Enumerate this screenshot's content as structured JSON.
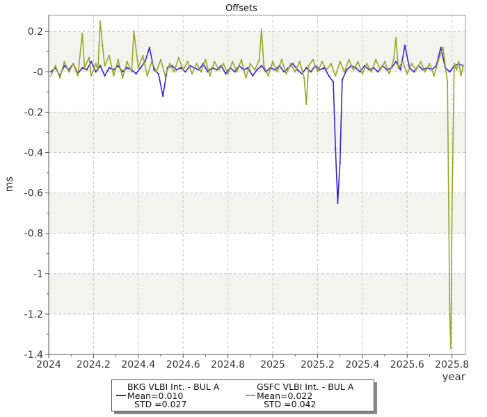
{
  "chart_data": {
    "type": "line",
    "title": "Offsets",
    "xlabel": "year",
    "ylabel": "ms",
    "xlim": [
      2024.0,
      2025.86
    ],
    "ylim": [
      -1.4,
      0.28
    ],
    "xticks": [
      2024,
      2024.2,
      2024.4,
      2024.6,
      2024.8,
      2025,
      2025.2,
      2025.4,
      2025.6,
      2025.8
    ],
    "xtick_labels": [
      "2024",
      "2024.2",
      "2024.4",
      "2024.6",
      "2024.8",
      "2025",
      "2025.2",
      "2025.4",
      "2025.6",
      "2025.8"
    ],
    "yticks": [
      0.2,
      0,
      -0.2,
      -0.4,
      -0.6,
      -0.8,
      -1,
      -1.2,
      -1.4
    ],
    "ytick_labels": [
      "0.2",
      "-0",
      "-0.2",
      "-0.4",
      "-0.6",
      "-0.8",
      "-1",
      "-1.2",
      "-1.4"
    ],
    "grid": true,
    "legend_position": "bottom-center",
    "series": [
      {
        "name": "BKG VLBI Int. - BUL A",
        "mean_label": "Mean=0.010",
        "std_label": "STD =0.027",
        "color": "#3a20d8",
        "points": [
          [
            2024.01,
            0.0
          ],
          [
            2024.03,
            0.02
          ],
          [
            2024.05,
            -0.02
          ],
          [
            2024.07,
            0.03
          ],
          [
            2024.09,
            0.01
          ],
          [
            2024.11,
            0.04
          ],
          [
            2024.13,
            -0.01
          ],
          [
            2024.15,
            0.02
          ],
          [
            2024.17,
            0.01
          ],
          [
            2024.19,
            0.05
          ],
          [
            2024.21,
            0.0
          ],
          [
            2024.23,
            0.03
          ],
          [
            2024.25,
            -0.02
          ],
          [
            2024.27,
            0.02
          ],
          [
            2024.29,
            0.01
          ],
          [
            2024.31,
            0.03
          ],
          [
            2024.33,
            0.0
          ],
          [
            2024.35,
            0.02
          ],
          [
            2024.37,
            0.01
          ],
          [
            2024.39,
            -0.01
          ],
          [
            2024.41,
            0.02
          ],
          [
            2024.43,
            0.05
          ],
          [
            2024.45,
            0.12
          ],
          [
            2024.47,
            0.01
          ],
          [
            2024.49,
            -0.01
          ],
          [
            2024.51,
            -0.12
          ],
          [
            2024.53,
            0.02
          ],
          [
            2024.55,
            0.03
          ],
          [
            2024.57,
            0.01
          ],
          [
            2024.59,
            0.02
          ],
          [
            2024.61,
            0.0
          ],
          [
            2024.63,
            0.03
          ],
          [
            2024.65,
            0.02
          ],
          [
            2024.67,
            0.01
          ],
          [
            2024.69,
            0.04
          ],
          [
            2024.71,
            0.0
          ],
          [
            2024.73,
            0.02
          ],
          [
            2024.75,
            0.01
          ],
          [
            2024.77,
            0.03
          ],
          [
            2024.79,
            -0.01
          ],
          [
            2024.81,
            0.02
          ],
          [
            2024.83,
            0.0
          ],
          [
            2024.85,
            0.03
          ],
          [
            2024.87,
            0.01
          ],
          [
            2024.89,
            0.02
          ],
          [
            2024.91,
            -0.02
          ],
          [
            2024.93,
            0.01
          ],
          [
            2024.95,
            0.03
          ],
          [
            2024.97,
            0.0
          ],
          [
            2024.99,
            0.02
          ],
          [
            2025.01,
            0.01
          ],
          [
            2025.03,
            0.03
          ],
          [
            2025.05,
            0.0
          ],
          [
            2025.07,
            0.02
          ],
          [
            2025.09,
            0.04
          ],
          [
            2025.11,
            0.01
          ],
          [
            2025.13,
            -0.01
          ],
          [
            2025.15,
            0.02
          ],
          [
            2025.17,
            0.0
          ],
          [
            2025.19,
            0.03
          ],
          [
            2025.21,
            0.01
          ],
          [
            2025.23,
            0.02
          ],
          [
            2025.25,
            -0.02
          ],
          [
            2025.27,
            -0.05
          ],
          [
            2025.28,
            -0.38
          ],
          [
            2025.29,
            -0.65
          ],
          [
            2025.3,
            -0.45
          ],
          [
            2025.31,
            -0.04
          ],
          [
            2025.33,
            0.01
          ],
          [
            2025.35,
            0.03
          ],
          [
            2025.37,
            0.02
          ],
          [
            2025.39,
            0.0
          ],
          [
            2025.41,
            0.03
          ],
          [
            2025.43,
            0.01
          ],
          [
            2025.45,
            0.02
          ],
          [
            2025.47,
            0.0
          ],
          [
            2025.49,
            0.03
          ],
          [
            2025.51,
            0.01
          ],
          [
            2025.53,
            0.02
          ],
          [
            2025.55,
            0.05
          ],
          [
            2025.57,
            0.01
          ],
          [
            2025.59,
            0.13
          ],
          [
            2025.61,
            0.02
          ],
          [
            2025.63,
            0.0
          ],
          [
            2025.65,
            0.03
          ],
          [
            2025.67,
            0.01
          ],
          [
            2025.69,
            0.02
          ],
          [
            2025.71,
            0.01
          ],
          [
            2025.73,
            0.03
          ],
          [
            2025.75,
            0.12
          ],
          [
            2025.77,
            0.02
          ],
          [
            2025.79,
            0.0
          ],
          [
            2025.81,
            0.03
          ],
          [
            2025.83,
            0.04
          ],
          [
            2025.85,
            0.03
          ]
        ]
      },
      {
        "name": "GSFC VLBI Int. - BUL A",
        "mean_label": "Mean=0.022",
        "std_label": "STD =0.042",
        "color": "#9aa526",
        "points": [
          [
            2024.01,
            -0.02
          ],
          [
            2024.03,
            0.03
          ],
          [
            2024.05,
            -0.03
          ],
          [
            2024.07,
            0.05
          ],
          [
            2024.09,
            0.0
          ],
          [
            2024.11,
            0.04
          ],
          [
            2024.13,
            -0.02
          ],
          [
            2024.15,
            0.19
          ],
          [
            2024.16,
            0.02
          ],
          [
            2024.18,
            0.07
          ],
          [
            2024.19,
            -0.02
          ],
          [
            2024.21,
            0.04
          ],
          [
            2024.22,
            0.01
          ],
          [
            2024.23,
            0.25
          ],
          [
            2024.24,
            0.13
          ],
          [
            2024.25,
            0.03
          ],
          [
            2024.27,
            0.08
          ],
          [
            2024.29,
            -0.02
          ],
          [
            2024.31,
            0.06
          ],
          [
            2024.33,
            -0.03
          ],
          [
            2024.35,
            0.05
          ],
          [
            2024.37,
            0.0
          ],
          [
            2024.38,
            0.2
          ],
          [
            2024.4,
            0.02
          ],
          [
            2024.42,
            0.08
          ],
          [
            2024.44,
            -0.02
          ],
          [
            2024.46,
            0.05
          ],
          [
            2024.48,
            0.0
          ],
          [
            2024.5,
            0.06
          ],
          [
            2024.52,
            -0.02
          ],
          [
            2024.54,
            0.04
          ],
          [
            2024.56,
            0.0
          ],
          [
            2024.58,
            0.07
          ],
          [
            2024.6,
            0.01
          ],
          [
            2024.62,
            0.05
          ],
          [
            2024.64,
            -0.01
          ],
          [
            2024.66,
            0.04
          ],
          [
            2024.68,
            0.0
          ],
          [
            2024.7,
            0.06
          ],
          [
            2024.72,
            -0.02
          ],
          [
            2024.74,
            0.05
          ],
          [
            2024.76,
            0.01
          ],
          [
            2024.78,
            0.04
          ],
          [
            2024.8,
            -0.01
          ],
          [
            2024.82,
            0.05
          ],
          [
            2024.84,
            0.0
          ],
          [
            2024.86,
            0.06
          ],
          [
            2024.88,
            -0.03
          ],
          [
            2024.9,
            0.04
          ],
          [
            2024.92,
            0.01
          ],
          [
            2024.94,
            0.06
          ],
          [
            2024.95,
            0.21
          ],
          [
            2024.96,
            0.03
          ],
          [
            2024.98,
            -0.02
          ],
          [
            2025.0,
            0.05
          ],
          [
            2025.02,
            0.0
          ],
          [
            2025.04,
            0.06
          ],
          [
            2025.06,
            -0.01
          ],
          [
            2025.08,
            0.04
          ],
          [
            2025.1,
            0.0
          ],
          [
            2025.12,
            0.05
          ],
          [
            2025.14,
            -0.03
          ],
          [
            2025.15,
            -0.16
          ],
          [
            2025.16,
            0.03
          ],
          [
            2025.18,
            0.06
          ],
          [
            2025.2,
            0.0
          ],
          [
            2025.22,
            0.05
          ],
          [
            2025.24,
            0.01
          ],
          [
            2025.26,
            0.04
          ],
          [
            2025.28,
            -0.02
          ],
          [
            2025.3,
            0.05
          ],
          [
            2025.32,
            0.0
          ],
          [
            2025.34,
            0.06
          ],
          [
            2025.36,
            0.01
          ],
          [
            2025.38,
            0.05
          ],
          [
            2025.4,
            -0.01
          ],
          [
            2025.42,
            0.04
          ],
          [
            2025.44,
            0.0
          ],
          [
            2025.46,
            0.06
          ],
          [
            2025.48,
            0.01
          ],
          [
            2025.5,
            0.05
          ],
          [
            2025.52,
            -0.01
          ],
          [
            2025.54,
            0.06
          ],
          [
            2025.55,
            0.17
          ],
          [
            2025.56,
            0.02
          ],
          [
            2025.58,
            0.05
          ],
          [
            2025.6,
            -0.01
          ],
          [
            2025.62,
            0.04
          ],
          [
            2025.64,
            0.01
          ],
          [
            2025.66,
            0.05
          ],
          [
            2025.68,
            0.0
          ],
          [
            2025.7,
            0.04
          ],
          [
            2025.72,
            -0.02
          ],
          [
            2025.74,
            0.06
          ],
          [
            2025.76,
            0.12
          ],
          [
            2025.77,
            0.03
          ],
          [
            2025.78,
            -0.05
          ],
          [
            2025.79,
            -1.21
          ],
          [
            2025.795,
            -1.37
          ],
          [
            2025.8,
            -0.68
          ],
          [
            2025.81,
            0.04
          ],
          [
            2025.82,
            0.01
          ],
          [
            2025.83,
            0.05
          ],
          [
            2025.84,
            -0.02
          ],
          [
            2025.85,
            0.03
          ]
        ]
      }
    ]
  }
}
